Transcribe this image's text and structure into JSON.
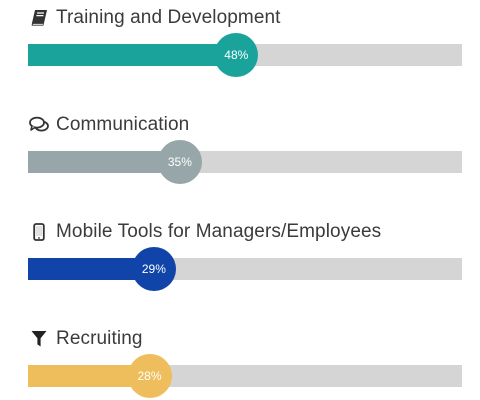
{
  "skills": [
    {
      "label": "Training and Development",
      "icon": "book-icon",
      "percent": 48,
      "percent_label": "48%",
      "color": "#1aa39b"
    },
    {
      "label": "Communication",
      "icon": "chat-bubbles-icon",
      "percent": 35,
      "percent_label": "35%",
      "color": "#97a6a8"
    },
    {
      "label": "Mobile Tools for Managers/Employees",
      "icon": "mobile-phone-icon",
      "percent": 29,
      "percent_label": "29%",
      "color": "#1044a8"
    },
    {
      "label": "Recruiting",
      "icon": "filter-icon",
      "percent": 28,
      "percent_label": "28%",
      "color": "#efbe5c"
    }
  ]
}
